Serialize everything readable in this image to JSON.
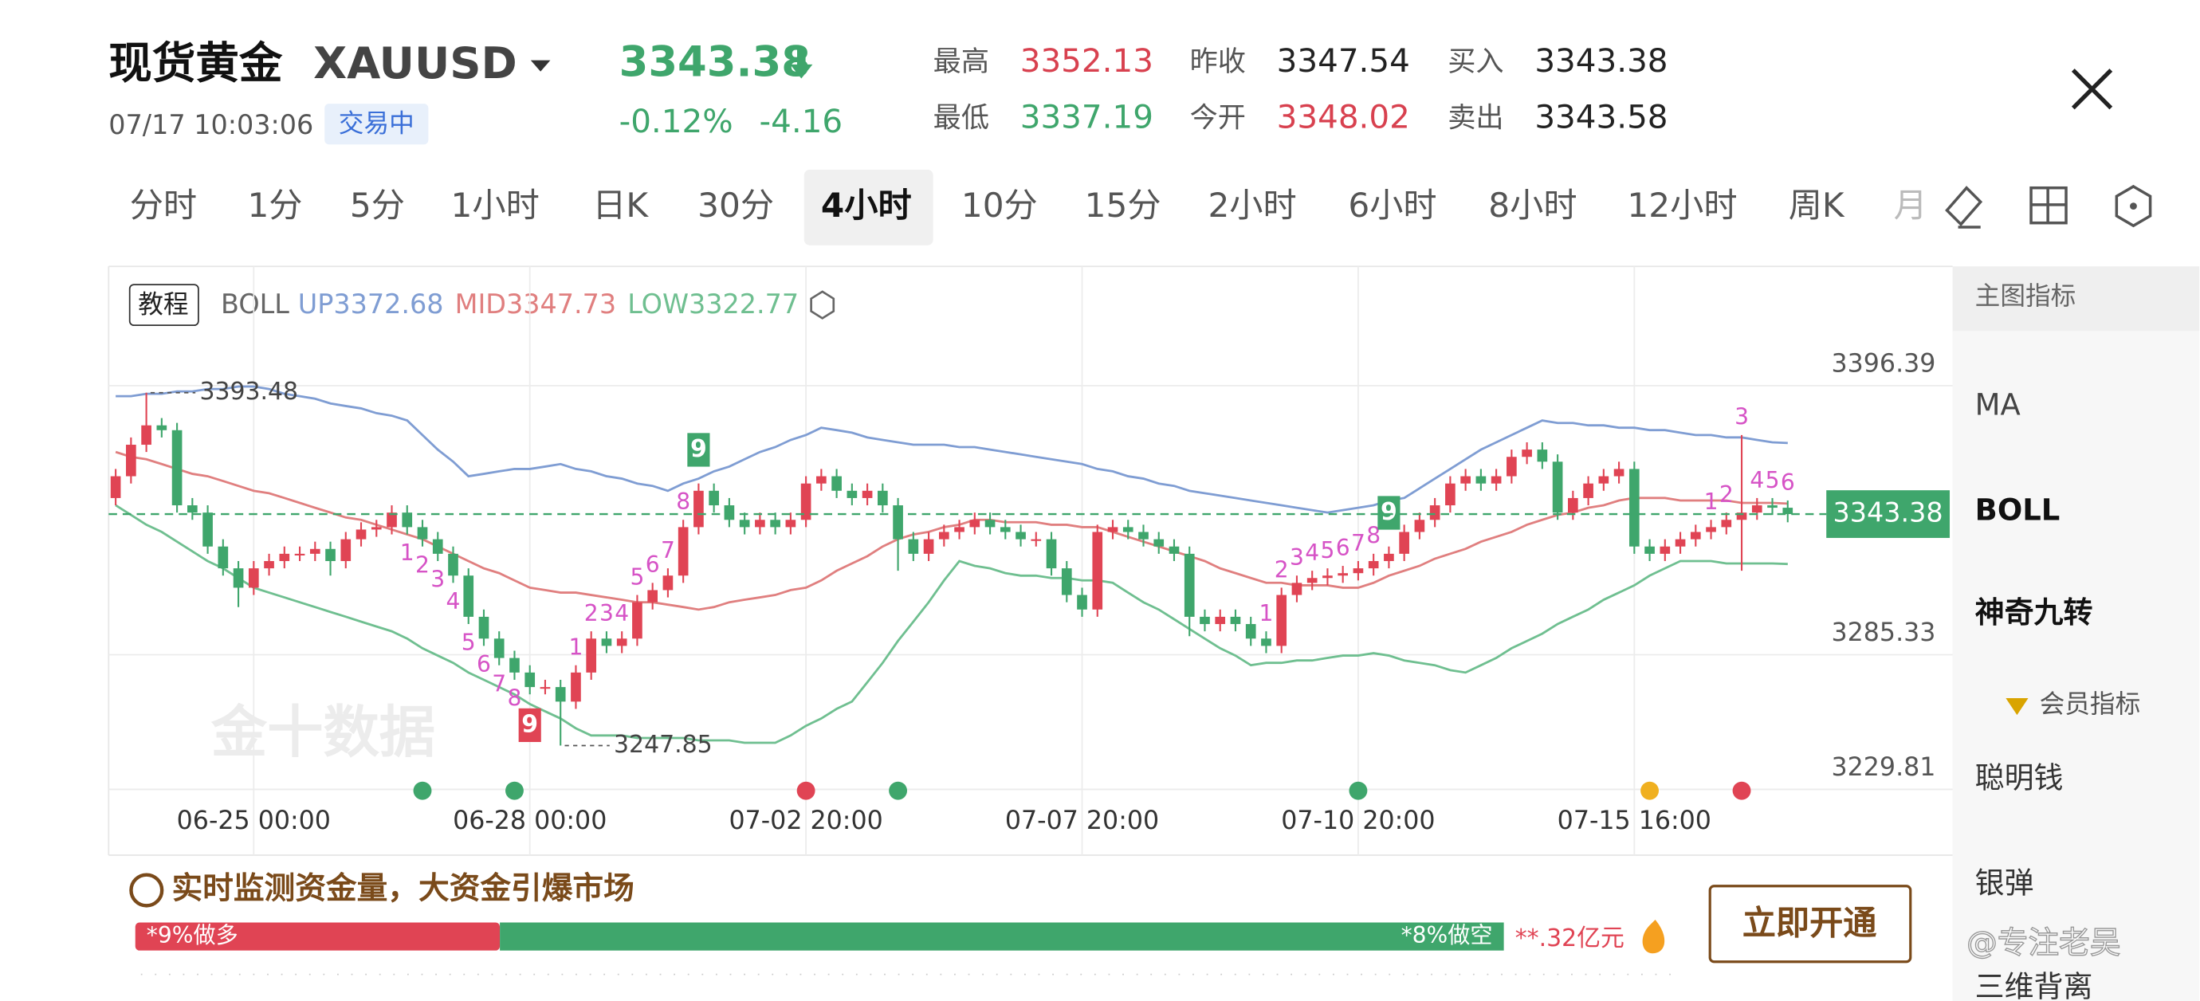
{
  "header": {
    "title": "现货黄金",
    "symbol": "XAUUSD",
    "time": "07/17 10:03:06",
    "status": "交易中",
    "change_pct": "-0.12%",
    "change": -4.16,
    "stats": [
      {
        "label": "最高",
        "value": 3352.13,
        "color": "#d8414f"
      },
      {
        "label": "最低",
        "value": 3337.19,
        "color": "#3fa66c"
      },
      {
        "label": "昨收",
        "value": 3347.54,
        "color": "#222222"
      },
      {
        "label": "今开",
        "value": 3348.02,
        "color": "#d8414f"
      },
      {
        "label": "买入",
        "value": 3343.38,
        "color": "#222222"
      },
      {
        "label": "卖出",
        "value": 3343.58,
        "color": "#222222"
      }
    ]
  },
  "tabs": [
    "分时",
    "1分",
    "5分",
    "1小时",
    "日K",
    "30分",
    "4小时",
    "10分",
    "15分",
    "2小时",
    "6小时",
    "8小时",
    "12小时",
    "周K",
    "月"
  ],
  "active_tab": "4小时",
  "chart_data": {
    "type": "candlestick",
    "tutorial": "教程",
    "indicator": "BOLL",
    "up_color": "#e04454",
    "down_color": "#3fa66c",
    "categories": [
      null,
      null,
      null,
      null,
      null,
      null,
      null,
      null,
      null,
      "06-25 00:00",
      null,
      null,
      null,
      null,
      null,
      null,
      null,
      null,
      null,
      null,
      null,
      null,
      null,
      null,
      null,
      null,
      null,
      "06-28 00:00",
      null,
      null,
      null,
      null,
      null,
      null,
      null,
      null,
      null,
      null,
      null,
      null,
      null,
      null,
      null,
      null,
      null,
      "07-02 20:00",
      null,
      null,
      null,
      null,
      null,
      null,
      null,
      null,
      null,
      null,
      null,
      null,
      null,
      null,
      null,
      null,
      null,
      "07-07 20:00",
      null,
      null,
      null,
      null,
      null,
      null,
      null,
      null,
      null,
      null,
      null,
      null,
      null,
      null,
      null,
      null,
      null,
      "07-10 20:00",
      null,
      null,
      null,
      null,
      null,
      null,
      null,
      null,
      null,
      null,
      null,
      null,
      null,
      null,
      null,
      null,
      null,
      "07-15 16:00",
      null,
      null,
      null,
      null,
      null,
      null,
      null,
      null,
      null,
      null
    ],
    "open": [
      3350,
      3359,
      3372,
      3380,
      3378,
      3347,
      3344,
      3330,
      3321,
      3313,
      3321,
      3324,
      3327,
      3327,
      3329,
      3324,
      3333,
      3337,
      3338,
      3344,
      3338,
      3333,
      3327,
      3318,
      3301,
      3292,
      3284,
      3278,
      3272,
      3272,
      3266,
      3278,
      3292,
      3289,
      3292,
      3307,
      3312,
      3318,
      3338,
      3353,
      3347,
      3341,
      3338,
      3341,
      3338,
      3341,
      3356,
      3359,
      3353,
      3350,
      3353,
      3347,
      3333,
      3327,
      3333,
      3336,
      3338,
      3341,
      3338,
      3336,
      3333,
      3333,
      3321,
      3310,
      3304,
      3336,
      3338,
      3336,
      3333,
      3330,
      3327,
      3301,
      3298,
      3301,
      3298,
      3292,
      3289,
      3310,
      3315,
      3317,
      3318,
      3319,
      3321,
      3324,
      3327,
      3336,
      3341,
      3347,
      3356,
      3359,
      3356,
      3359,
      3367,
      3370,
      3365,
      3344,
      3350,
      3356,
      3359,
      3362,
      3330,
      3327,
      3330,
      3333,
      3336,
      3338,
      3341,
      3344,
      3347,
      3346
    ],
    "high": [
      3362,
      3375,
      3393.48,
      3383,
      3381,
      3350,
      3347,
      3333,
      3324,
      3324,
      3327,
      3330,
      3330,
      3332,
      3332,
      3336,
      3340,
      3341,
      3347,
      3347,
      3341,
      3336,
      3330,
      3321,
      3304,
      3295,
      3287,
      3281,
      3275,
      3275,
      3281,
      3295,
      3295,
      3295,
      3310,
      3315,
      3321,
      3341,
      3356,
      3356,
      3350,
      3344,
      3344,
      3344,
      3344,
      3359,
      3362,
      3362,
      3356,
      3356,
      3356,
      3350,
      3336,
      3336,
      3339,
      3341,
      3344,
      3344,
      3341,
      3339,
      3336,
      3336,
      3324,
      3313,
      3339,
      3341,
      3341,
      3339,
      3336,
      3333,
      3330,
      3304,
      3304,
      3304,
      3301,
      3295,
      3313,
      3318,
      3320,
      3321,
      3322,
      3324,
      3327,
      3330,
      3339,
      3344,
      3350,
      3359,
      3362,
      3362,
      3362,
      3370,
      3373,
      3373,
      3368,
      3353,
      3359,
      3362,
      3365,
      3365,
      3333,
      3333,
      3336,
      3339,
      3341,
      3344,
      3376,
      3350,
      3350,
      3349
    ],
    "low": [
      3347,
      3356,
      3369,
      3375,
      3344,
      3341,
      3327,
      3318,
      3305,
      3310,
      3318,
      3321,
      3324,
      3324,
      3318,
      3321,
      3330,
      3334,
      3335,
      3335,
      3330,
      3324,
      3315,
      3298,
      3289,
      3281,
      3275,
      3269,
      3269,
      3247.85,
      3263,
      3275,
      3286,
      3286,
      3289,
      3304,
      3309,
      3315,
      3335,
      3344,
      3338,
      3335,
      3335,
      3335,
      3335,
      3338,
      3353,
      3350,
      3347,
      3347,
      3344,
      3320,
      3324,
      3324,
      3330,
      3333,
      3335,
      3335,
      3333,
      3330,
      3330,
      3318,
      3307,
      3301,
      3301,
      3333,
      3333,
      3330,
      3327,
      3324,
      3293,
      3295,
      3295,
      3295,
      3289,
      3286,
      3286,
      3307,
      3312,
      3314,
      3315,
      3316,
      3318,
      3321,
      3324,
      3333,
      3338,
      3344,
      3353,
      3353,
      3353,
      3356,
      3364,
      3362,
      3341,
      3341,
      3347,
      3353,
      3356,
      3327,
      3324,
      3324,
      3327,
      3330,
      3333,
      3335,
      3320,
      3341,
      3343,
      3340
    ],
    "close": [
      3359,
      3372,
      3380,
      3378,
      3347,
      3344,
      3330,
      3321,
      3313,
      3321,
      3324,
      3327,
      3327,
      3329,
      3324,
      3333,
      3337,
      3338,
      3344,
      3338,
      3333,
      3327,
      3318,
      3301,
      3292,
      3284,
      3278,
      3272,
      3272,
      3266,
      3278,
      3292,
      3289,
      3292,
      3307,
      3312,
      3318,
      3338,
      3353,
      3347,
      3341,
      3338,
      3341,
      3338,
      3341,
      3356,
      3359,
      3353,
      3350,
      3353,
      3347,
      3333,
      3327,
      3333,
      3336,
      3338,
      3341,
      3338,
      3336,
      3333,
      3333,
      3321,
      3310,
      3304,
      3336,
      3338,
      3336,
      3333,
      3330,
      3327,
      3301,
      3298,
      3301,
      3298,
      3292,
      3289,
      3310,
      3315,
      3317,
      3318,
      3319,
      3321,
      3324,
      3327,
      3336,
      3341,
      3347,
      3356,
      3359,
      3356,
      3359,
      3367,
      3370,
      3365,
      3344,
      3350,
      3356,
      3359,
      3362,
      3330,
      3327,
      3330,
      3333,
      3336,
      3338,
      3341,
      3344,
      3347,
      3346,
      3343.38
    ],
    "series": [
      {
        "name": "UP",
        "color": "#7f9dd3",
        "values": [
          3392,
          3392,
          3393,
          3393,
          3394,
          3394,
          3395,
          3395,
          3396,
          3396,
          3395,
          3393,
          3392,
          3391,
          3389,
          3388,
          3387,
          3385,
          3384,
          3382,
          3376,
          3370,
          3365,
          3359,
          3360,
          3361,
          3362,
          3362,
          3363,
          3364,
          3362,
          3361,
          3359,
          3358,
          3356,
          3355,
          3353,
          3356,
          3358,
          3361,
          3363,
          3366,
          3369,
          3371,
          3374,
          3376,
          3379,
          3378,
          3377,
          3375,
          3374,
          3373,
          3372,
          3372,
          3372,
          3371,
          3371,
          3370,
          3369,
          3368,
          3367,
          3366,
          3365,
          3364,
          3362,
          3361,
          3359,
          3358,
          3356,
          3355,
          3353,
          3352,
          3351,
          3350,
          3349,
          3348,
          3347,
          3346,
          3345,
          3344,
          3345,
          3346,
          3347,
          3349,
          3350,
          3354,
          3358,
          3362,
          3366,
          3370,
          3373,
          3376,
          3379,
          3382,
          3381,
          3381,
          3380,
          3380,
          3379,
          3379,
          3378,
          3378,
          3377,
          3376,
          3376,
          3375,
          3375,
          3374,
          3373,
          3372.68
        ]
      },
      {
        "name": "MID",
        "color": "#e07f7f",
        "values": [
          3369,
          3367,
          3366,
          3364,
          3362,
          3360,
          3359,
          3357,
          3355,
          3353,
          3352,
          3350,
          3348,
          3346,
          3344,
          3342,
          3341,
          3339,
          3337,
          3335,
          3333,
          3330,
          3327,
          3324,
          3321,
          3319,
          3316,
          3313,
          3312,
          3311,
          3311,
          3310,
          3309,
          3308,
          3307,
          3307,
          3306,
          3305,
          3304,
          3305,
          3307,
          3308,
          3309,
          3310,
          3312,
          3313,
          3316,
          3320,
          3323,
          3326,
          3330,
          3333,
          3335,
          3336,
          3338,
          3339,
          3341,
          3341,
          3340,
          3340,
          3340,
          3339,
          3339,
          3338,
          3338,
          3336,
          3334,
          3332,
          3330,
          3328,
          3326,
          3324,
          3321,
          3319,
          3317,
          3315,
          3315,
          3314,
          3314,
          3314,
          3313,
          3313,
          3315,
          3318,
          3320,
          3322,
          3325,
          3327,
          3329,
          3332,
          3334,
          3336,
          3339,
          3341,
          3343,
          3344,
          3346,
          3347,
          3349,
          3350,
          3350,
          3350,
          3349,
          3349,
          3349,
          3349,
          3348,
          3348,
          3348,
          3347.73
        ]
      },
      {
        "name": "LOW",
        "color": "#6fbf90",
        "values": [
          3347,
          3343,
          3339,
          3336,
          3332,
          3328,
          3324,
          3321,
          3317,
          3313,
          3311,
          3309,
          3307,
          3305,
          3303,
          3301,
          3299,
          3297,
          3295,
          3292,
          3288,
          3285,
          3282,
          3278,
          3275,
          3272,
          3269,
          3265,
          3262,
          3259,
          3255,
          3252,
          3252,
          3252,
          3251,
          3251,
          3251,
          3251,
          3250,
          3250,
          3250,
          3249,
          3249,
          3249,
          3252,
          3256,
          3259,
          3263,
          3266,
          3274,
          3282,
          3291,
          3299,
          3307,
          3316,
          3324,
          3322,
          3321,
          3319,
          3318,
          3318,
          3317,
          3317,
          3316,
          3316,
          3315,
          3311,
          3307,
          3304,
          3300,
          3296,
          3292,
          3288,
          3285,
          3281,
          3282,
          3282,
          3283,
          3283,
          3284,
          3285,
          3285,
          3286,
          3285,
          3283,
          3282,
          3281,
          3279,
          3278,
          3281,
          3284,
          3288,
          3291,
          3294,
          3298,
          3301,
          3304,
          3308,
          3311,
          3314,
          3318,
          3321,
          3324,
          3324,
          3324,
          3323,
          3323,
          3323,
          3323,
          3322.77
        ]
      }
    ],
    "nine_turn_above": [
      null,
      null,
      null,
      null,
      null,
      null,
      null,
      null,
      null,
      null,
      null,
      null,
      null,
      null,
      null,
      null,
      null,
      null,
      null,
      null,
      null,
      null,
      null,
      null,
      null,
      null,
      null,
      null,
      null,
      null,
      1,
      2,
      3,
      4,
      5,
      6,
      7,
      8,
      9,
      null,
      null,
      null,
      null,
      null,
      null,
      null,
      null,
      null,
      null,
      null,
      null,
      null,
      null,
      null,
      null,
      null,
      null,
      null,
      null,
      null,
      null,
      null,
      null,
      null,
      null,
      null,
      null,
      null,
      null,
      null,
      null,
      null,
      null,
      null,
      null,
      1,
      2,
      3,
      4,
      5,
      6,
      7,
      8,
      9,
      null,
      null,
      null,
      null,
      null,
      null,
      null,
      null,
      null,
      null,
      null,
      null,
      null,
      null,
      null,
      null,
      null,
      null,
      null,
      null,
      1,
      2,
      3,
      4,
      5,
      6
    ],
    "nine_turn_below": [
      null,
      null,
      null,
      null,
      null,
      null,
      null,
      null,
      null,
      null,
      null,
      null,
      null,
      null,
      null,
      null,
      null,
      null,
      null,
      1,
      2,
      3,
      4,
      5,
      6,
      7,
      8,
      9,
      null,
      null,
      null,
      null,
      null,
      null,
      null,
      null,
      null,
      null,
      null,
      null,
      null,
      null,
      null,
      null,
      null,
      null,
      null,
      null,
      null,
      null,
      null,
      null,
      null,
      null,
      null,
      null,
      null,
      null,
      null,
      null,
      null,
      null,
      null,
      null,
      null,
      null,
      null,
      null,
      null,
      null,
      null,
      null,
      null,
      null,
      null,
      null,
      null,
      null,
      null,
      null,
      null,
      null,
      null,
      null,
      null,
      null,
      null,
      null,
      null,
      null,
      null,
      null,
      null,
      null,
      null,
      null,
      null,
      null,
      null,
      null,
      null,
      null,
      null,
      null,
      null,
      null,
      null,
      null,
      null,
      null
    ],
    "ylim": [
      3229.81,
      3445.6
    ],
    "yticks": [
      3396.39,
      3285.33,
      3229.81
    ],
    "grid": true,
    "watermark": "金十数据"
  },
  "indicator_panel": {
    "title": "主图指标",
    "items": [
      "MA",
      "BOLL",
      "神奇九转"
    ],
    "member_title": "会员指标",
    "member_items": [
      "聪明钱",
      "银弹",
      "三维背离"
    ]
  },
  "promo": {
    "title": "实时监测资金量，大资金引爆市场",
    "long": "*9%做多",
    "short": "*8%做空",
    "amount": "**.32亿元",
    "button": "立即开通"
  },
  "user_handle": "@专注老吴"
}
